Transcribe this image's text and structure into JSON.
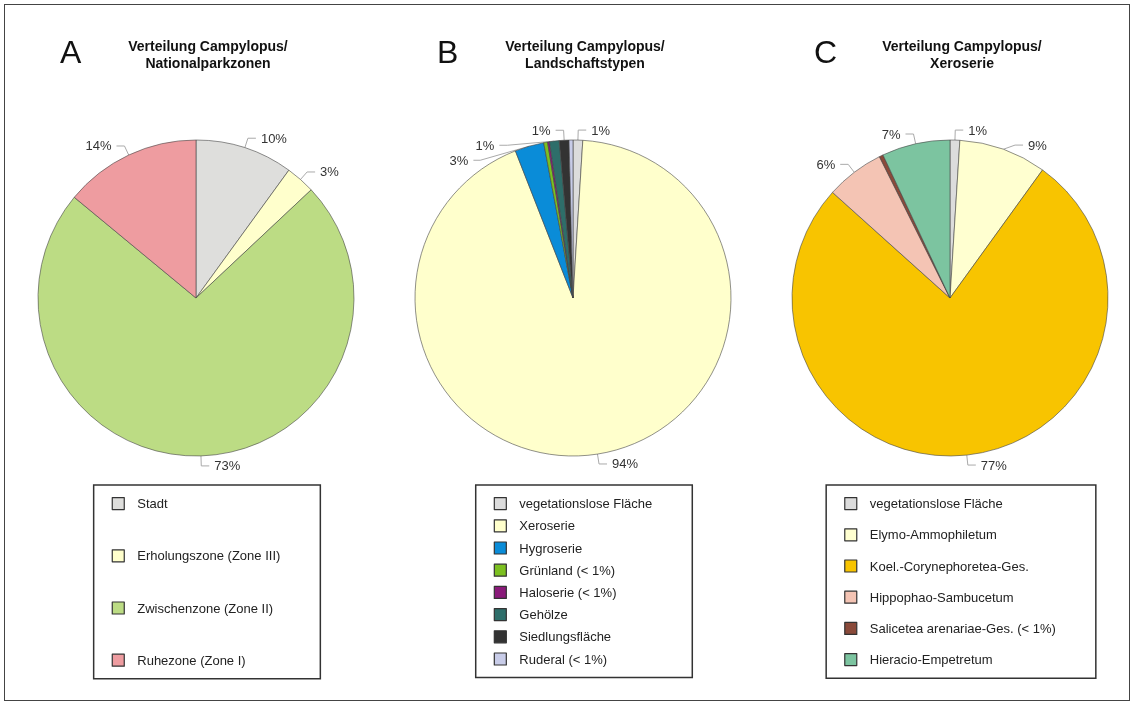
{
  "chart_data": [
    {
      "type": "pie",
      "title": "Verteilung Campylopus/\nNationalparkzonen",
      "annotations": [
        "A"
      ],
      "legend": "bottom",
      "categories": [
        "Stadt",
        "Erholungszone (Zone III)",
        "Zwischenzone (Zone II)",
        "Ruhezone (Zone I)"
      ],
      "values": [
        10,
        3,
        73,
        14
      ],
      "value_labels": [
        "10%",
        "3%",
        "73%",
        "14%"
      ],
      "colors": [
        "#dededc",
        "#ffffcc",
        "#bcdc84",
        "#ee9ca0"
      ]
    },
    {
      "type": "pie",
      "title": "Verteilung Campylopus/\nLandschaftstypen",
      "annotations": [
        "B"
      ],
      "legend": "bottom",
      "categories": [
        "vegetationslose Fläche",
        "Xeroserie",
        "Hygroserie",
        "Grünland (< 1%)",
        "Haloserie (< 1%)",
        "Gehölze",
        "Siedlungsfläche",
        "Ruderal (< 1%)"
      ],
      "values": [
        1,
        94,
        3,
        0.4,
        0.2,
        1,
        1,
        0.4
      ],
      "value_labels": [
        "1%",
        "94%",
        "3%",
        null,
        null,
        "1%",
        "1%",
        null
      ],
      "colors": [
        "#dcdcdc",
        "#ffffcc",
        "#0a8cd8",
        "#7cc020",
        "#8a1a7a",
        "#2e6e6a",
        "#333333",
        "#c8cce8"
      ]
    },
    {
      "type": "pie",
      "title": "Verteilung Campylopus/\nXeroserie",
      "annotations": [
        "C"
      ],
      "legend": "bottom",
      "categories": [
        "vegetationslose Fläche",
        "Elymo-Ammophiletum",
        "Koel.-Corynephoretea-Ges.",
        "Hippophao-Sambucetum",
        "Salicetea arenariae-Ges. (< 1%)",
        "Hieracio-Empetretum"
      ],
      "values": [
        1,
        9,
        77,
        6,
        0.4,
        7
      ],
      "value_labels": [
        "1%",
        "9%",
        "77%",
        "6%",
        null,
        "7%"
      ],
      "colors": [
        "#dcdcdc",
        "#ffffd0",
        "#f8c400",
        "#f4c4b4",
        "#8a4a3a",
        "#7cc4a0"
      ]
    }
  ]
}
